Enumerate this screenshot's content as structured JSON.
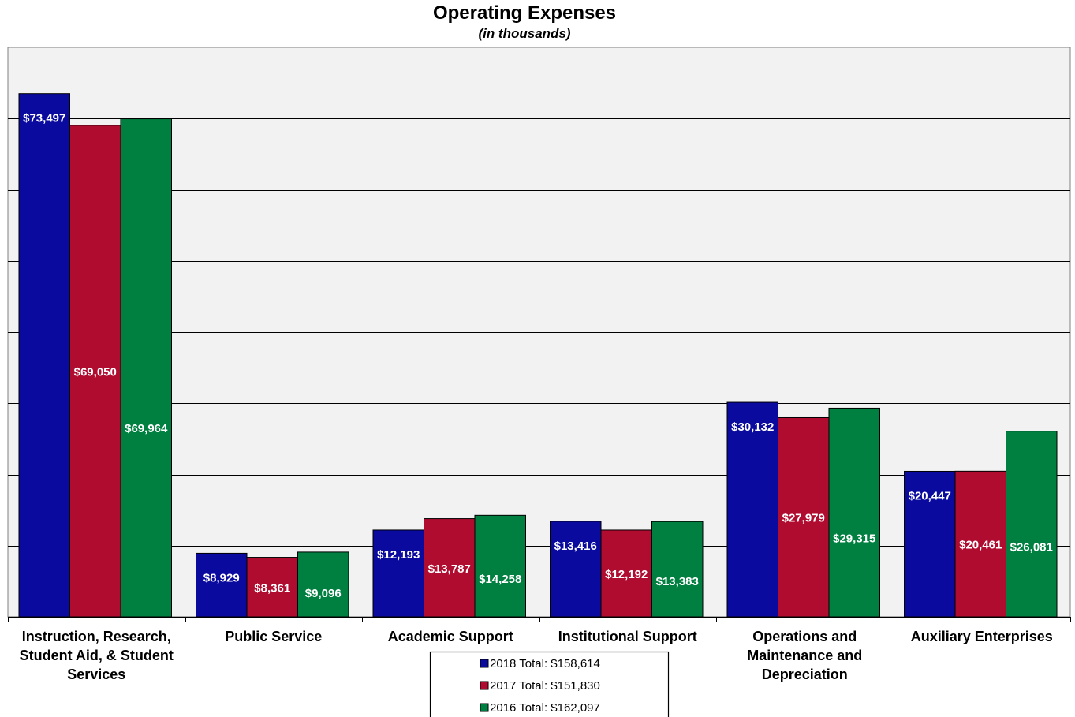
{
  "chart_data": {
    "type": "bar",
    "title": "Operating Expenses",
    "subtitle": "(in thousands)",
    "xlabel": "",
    "ylabel": "",
    "ylim": [
      0,
      80000
    ],
    "grid_step": 10000,
    "grid": true,
    "legend_position": "bottom-center",
    "categories": [
      [
        "Instruction, Research,",
        "Student Aid, & Student",
        "Services"
      ],
      [
        "Public Service"
      ],
      [
        "Academic Support"
      ],
      [
        "Institutional Support"
      ],
      [
        "Operations and",
        "Maintenance and",
        "Depreciation"
      ],
      [
        "Auxiliary Enterprises"
      ]
    ],
    "series": [
      {
        "name": "2018",
        "color": "#0A0A9E",
        "values": [
          73497,
          8929,
          12193,
          13416,
          30132,
          20447
        ],
        "labels": [
          "$73,497",
          "$8,929",
          "$12,193",
          "$13,416",
          "$30,132",
          "$20,447"
        ]
      },
      {
        "name": "2017",
        "color": "#B00C30",
        "values": [
          69050,
          8361,
          13787,
          12192,
          27979,
          20461
        ],
        "labels": [
          "$69,050",
          "$8,361",
          "$13,787",
          "$12,192",
          "$27,979",
          "$20,461"
        ]
      },
      {
        "name": "2016",
        "color": "#008040",
        "values": [
          69964,
          9096,
          14258,
          13383,
          29315,
          26081
        ],
        "labels": [
          "$69,964",
          "$9,096",
          "$14,258",
          "$13,383",
          "$29,315",
          "$26,081"
        ]
      }
    ],
    "legend": [
      {
        "series": "2018",
        "text": "2018 Total:  $158,614"
      },
      {
        "series": "2017",
        "text": "2017 Total:  $151,830"
      },
      {
        "series": "2016",
        "text": "2016 Total:  $162,097"
      }
    ]
  }
}
